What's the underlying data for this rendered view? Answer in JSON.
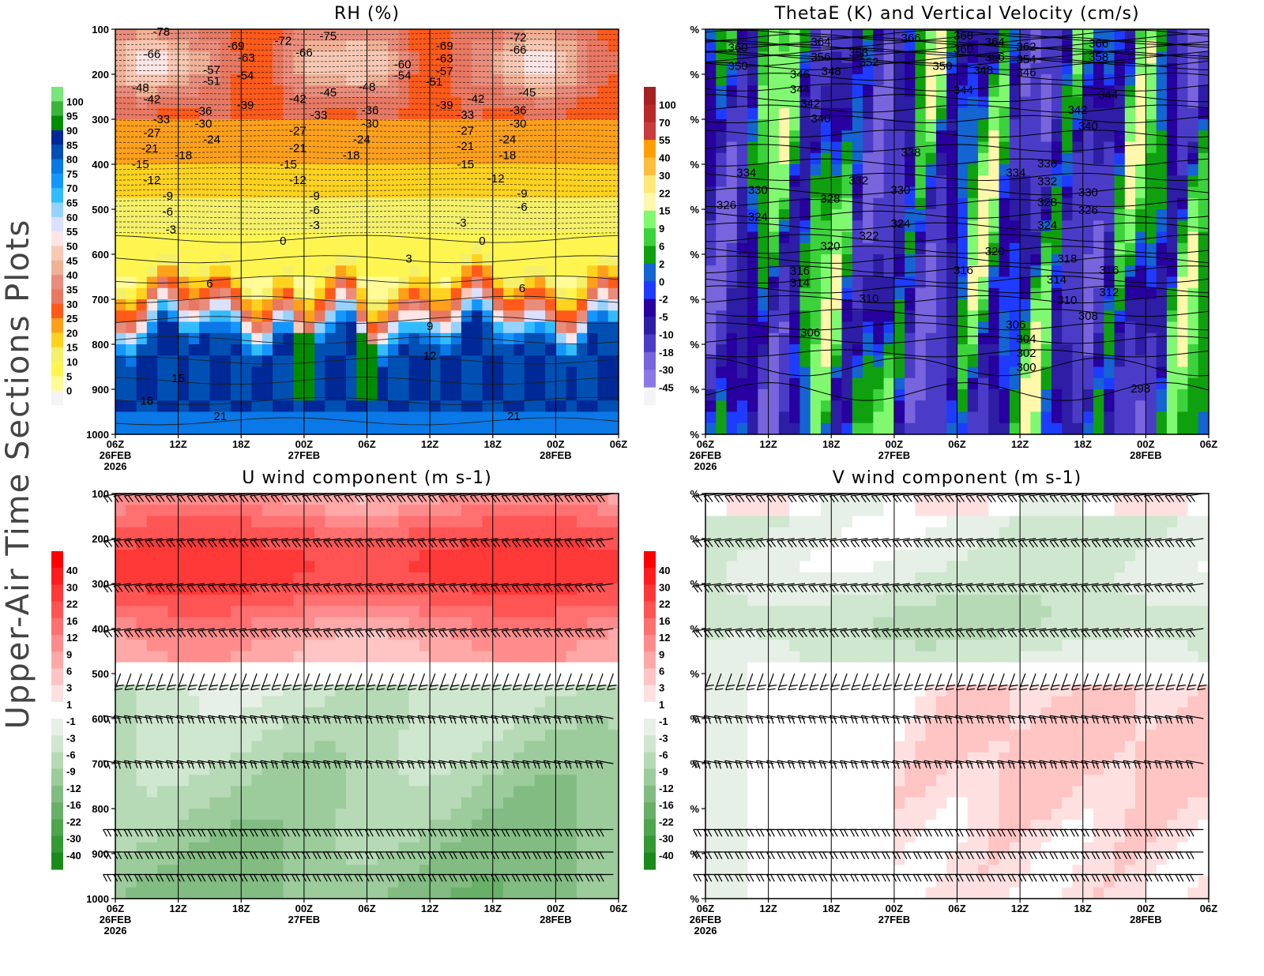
{
  "side_title": "Upper-Air Time Sections Plots",
  "time_axis": {
    "ticks": [
      "06Z",
      "12Z",
      "18Z",
      "00Z",
      "06Z",
      "12Z",
      "18Z",
      "00Z",
      "06Z"
    ],
    "dates": [
      {
        "index": 0,
        "label": "26FEB"
      },
      {
        "index": 3,
        "label": "27FEB"
      },
      {
        "index": 7,
        "label": "28FEB"
      }
    ],
    "year": "2026"
  },
  "pressure_axis": {
    "ticks": [
      "100",
      "200",
      "300",
      "400",
      "500",
      "600",
      "700",
      "800",
      "900",
      "1000"
    ],
    "placeholder_label": "%"
  },
  "chart_data": [
    {
      "type": "heatmap",
      "title": "RH (%)",
      "xlim_hours": [
        0,
        48
      ],
      "ylim_hPa": [
        1000,
        100
      ],
      "colorbar": {
        "levels": [
          0,
          5,
          10,
          15,
          20,
          25,
          30,
          35,
          40,
          45,
          50,
          55,
          60,
          65,
          70,
          75,
          80,
          85,
          90,
          95,
          100
        ],
        "colors": [
          "#f4f4f4",
          "#fffb96",
          "#fff550",
          "#f5f06a",
          "#ffd21e",
          "#ffa01a",
          "#ff5a19",
          "#e87862",
          "#ea8c7c",
          "#f0b296",
          "#f8c8b4",
          "#ffe6e6",
          "#dce0ff",
          "#96d2ff",
          "#32bcff",
          "#1496ff",
          "#0a78e6",
          "#0050b4",
          "#002896",
          "#008c00",
          "#3cb43c",
          "#78e678"
        ]
      },
      "contour_labels": [
        [
          4.4,
          105,
          "-78"
        ],
        [
          3.5,
          155,
          "-66"
        ],
        [
          2.4,
          230,
          "-48"
        ],
        [
          3.5,
          255,
          "-42"
        ],
        [
          4.4,
          300,
          "-33"
        ],
        [
          3.5,
          330,
          "-27"
        ],
        [
          3.3,
          365,
          "-21"
        ],
        [
          2.4,
          400,
          "-15"
        ],
        [
          3.5,
          435,
          "-12"
        ],
        [
          5,
          470,
          "-9"
        ],
        [
          5,
          505,
          "-6"
        ],
        [
          5.3,
          545,
          "-3"
        ],
        [
          16,
          570,
          "0"
        ],
        [
          28,
          610,
          "3"
        ],
        [
          9,
          665,
          "6"
        ],
        [
          30,
          760,
          "9"
        ],
        [
          30,
          825,
          "12"
        ],
        [
          6,
          875,
          "15"
        ],
        [
          3,
          925,
          "18"
        ],
        [
          10,
          960,
          "21"
        ],
        [
          38,
          960,
          "21"
        ],
        [
          11.5,
          137,
          "-69"
        ],
        [
          12.5,
          163,
          "-63"
        ],
        [
          9.2,
          190,
          "-57"
        ],
        [
          12.4,
          203,
          "-54"
        ],
        [
          9.2,
          215,
          "-51"
        ],
        [
          12.4,
          268,
          "-39"
        ],
        [
          8.4,
          282,
          "-36"
        ],
        [
          8.4,
          310,
          "-30"
        ],
        [
          9.2,
          345,
          "-24"
        ],
        [
          6.5,
          380,
          "-18"
        ],
        [
          16,
          125,
          "-72"
        ],
        [
          20.3,
          115,
          "-75"
        ],
        [
          18,
          152,
          "-66"
        ],
        [
          20.3,
          240,
          "-45"
        ],
        [
          17.4,
          254,
          "-42"
        ],
        [
          19.4,
          290,
          "-33"
        ],
        [
          17.4,
          325,
          "-27"
        ],
        [
          17.4,
          364,
          "-21"
        ],
        [
          16.5,
          400,
          "-15"
        ],
        [
          17.4,
          435,
          "-12"
        ],
        [
          19,
          470,
          "-9"
        ],
        [
          19,
          502,
          "-6"
        ],
        [
          19,
          535,
          "-3"
        ],
        [
          24,
          228,
          "-48"
        ],
        [
          24.3,
          280,
          "-36"
        ],
        [
          24.3,
          310,
          "-30"
        ],
        [
          23.5,
          345,
          "-24"
        ],
        [
          22.5,
          380,
          "-18"
        ],
        [
          27.4,
          178,
          "-60"
        ],
        [
          27.4,
          203,
          "-54"
        ],
        [
          30.4,
          217,
          "-51"
        ],
        [
          31.4,
          137,
          "-69"
        ],
        [
          31.4,
          165,
          "-63"
        ],
        [
          31.4,
          193,
          "-57"
        ],
        [
          31.4,
          268,
          "-39"
        ],
        [
          34.4,
          254,
          "-42"
        ],
        [
          33.4,
          290,
          "-33"
        ],
        [
          33.4,
          325,
          "-27"
        ],
        [
          33.4,
          360,
          "-21"
        ],
        [
          33.4,
          400,
          "-15"
        ],
        [
          33,
          530,
          "-3"
        ],
        [
          35,
          570,
          "0"
        ],
        [
          38.4,
          118,
          "-72"
        ],
        [
          38.4,
          146,
          "-66"
        ],
        [
          39.3,
          240,
          "-45"
        ],
        [
          38.4,
          280,
          "-36"
        ],
        [
          38.4,
          310,
          "-30"
        ],
        [
          37.4,
          345,
          "-24"
        ],
        [
          37.4,
          380,
          "-18"
        ],
        [
          36.3,
          432,
          "-12"
        ],
        [
          38.8,
          465,
          "-9"
        ],
        [
          38.8,
          495,
          "-6"
        ],
        [
          38.8,
          675,
          "6"
        ]
      ]
    },
    {
      "type": "heatmap",
      "title": "ThetaE (K) and Vertical Velocity (cm/s)",
      "xlim_hours": [
        0,
        48
      ],
      "ylim_hPa": [
        1000,
        100
      ],
      "colorbar": {
        "levels": [
          -45,
          -30,
          -18,
          -10,
          -5,
          -2,
          0,
          2,
          6,
          9,
          15,
          22,
          30,
          40,
          55,
          70,
          100
        ],
        "colors": [
          "#f4f4f4",
          "#8c78e6",
          "#7864dc",
          "#4b3cc8",
          "#2d1ea5",
          "#2800a0",
          "#1e3cff",
          "#1464d2",
          "#0fa00f",
          "#3cd23c",
          "#80f870",
          "#fff8aa",
          "#ffe678",
          "#ffbe3c",
          "#ffa000",
          "#c83c3c",
          "#b82a2a",
          "#a52022"
        ]
      },
      "contour_labels": [
        [
          3.1,
          140,
          "360"
        ],
        [
          3.1,
          182,
          "350"
        ],
        [
          3.9,
          418,
          "334"
        ],
        [
          5,
          457,
          "330"
        ],
        [
          2,
          490,
          "326"
        ],
        [
          5,
          517,
          "324"
        ],
        [
          9,
          637,
          "316"
        ],
        [
          9,
          663,
          "314"
        ],
        [
          10,
          774,
          "306"
        ],
        [
          11,
          128,
          "364"
        ],
        [
          11,
          161,
          "356"
        ],
        [
          9,
          200,
          "346"
        ],
        [
          9,
          233,
          "344"
        ],
        [
          10,
          265,
          "342"
        ],
        [
          11,
          298,
          "340"
        ],
        [
          12,
          193,
          "348"
        ],
        [
          14.6,
          152,
          "358"
        ],
        [
          15.6,
          173,
          "352"
        ],
        [
          11.9,
          476,
          "328"
        ],
        [
          11.9,
          582,
          "320"
        ],
        [
          15.6,
          559,
          "322"
        ],
        [
          15.6,
          698,
          "310"
        ],
        [
          14.6,
          436,
          "332"
        ],
        [
          18.6,
          457,
          "330"
        ],
        [
          18.6,
          532,
          "324"
        ],
        [
          19.6,
          374,
          "338"
        ],
        [
          19.6,
          119,
          "366"
        ],
        [
          24.6,
          114,
          "368"
        ],
        [
          24.6,
          144,
          "360"
        ],
        [
          22.6,
          182,
          "350"
        ],
        [
          24.6,
          235,
          "344"
        ],
        [
          24.6,
          635,
          "316"
        ],
        [
          27.6,
          128,
          "364"
        ],
        [
          27.6,
          161,
          "356"
        ],
        [
          26.5,
          191,
          "348"
        ],
        [
          30.6,
          139,
          "362"
        ],
        [
          30.6,
          167,
          "354"
        ],
        [
          30.6,
          196,
          "346"
        ],
        [
          27.6,
          593,
          "320"
        ],
        [
          29.6,
          418,
          "334"
        ],
        [
          32.6,
          398,
          "336"
        ],
        [
          32.6,
          438,
          "332"
        ],
        [
          32.6,
          484,
          "328"
        ],
        [
          32.6,
          535,
          "324"
        ],
        [
          34.5,
          610,
          "318"
        ],
        [
          33.5,
          656,
          "314"
        ],
        [
          34.5,
          702,
          "310"
        ],
        [
          36.5,
          737,
          "308"
        ],
        [
          29.6,
          756,
          "306"
        ],
        [
          30.6,
          788,
          "304"
        ],
        [
          30.6,
          819,
          "302"
        ],
        [
          30.6,
          851,
          "300"
        ],
        [
          35.5,
          279,
          "342"
        ],
        [
          36.5,
          315,
          "340"
        ],
        [
          38.4,
          246,
          "344"
        ],
        [
          37.5,
          132,
          "366"
        ],
        [
          37.5,
          161,
          "358"
        ],
        [
          36.5,
          462,
          "330"
        ],
        [
          36.5,
          502,
          "326"
        ],
        [
          38.5,
          635,
          "316"
        ],
        [
          38.5,
          684,
          "312"
        ],
        [
          41.5,
          898,
          "298"
        ]
      ]
    },
    {
      "type": "heatmap",
      "title": "U wind component (m s-1)",
      "xlim_hours": [
        0,
        48
      ],
      "ylim_hPa": [
        1000,
        100
      ],
      "colorbar": {
        "levels": [
          -40,
          -30,
          -22,
          -16,
          -12,
          -9,
          -6,
          -3,
          -1,
          1,
          3,
          6,
          9,
          12,
          16,
          22,
          30,
          40
        ],
        "colors": [
          "#1a8a1a",
          "#349a34",
          "#4ea54e",
          "#68b068",
          "#82bc82",
          "#9ccb9c",
          "#b6d9b6",
          "#cfe6cf",
          "#e6f0e6",
          "#ffffff",
          "#ffe0e0",
          "#ffc4c4",
          "#ffa8a8",
          "#ff8c8c",
          "#ff7070",
          "#ff5454",
          "#ff3838",
          "#ff1c1c",
          "#ff0000"
        ]
      },
      "wind_barb_levels_hPa": [
        100,
        200,
        300,
        400,
        500,
        600,
        700,
        850,
        900,
        950
      ]
    },
    {
      "type": "heatmap",
      "title": "V wind component (m s-1)",
      "xlim_hours": [
        0,
        48
      ],
      "ylim_hPa": [
        1000,
        100
      ],
      "colorbar": {
        "levels": [
          -40,
          -30,
          -22,
          -16,
          -12,
          -9,
          -6,
          -3,
          -1,
          1,
          3,
          6,
          9,
          12,
          16,
          22,
          30,
          40
        ],
        "colors": [
          "#1a8a1a",
          "#349a34",
          "#4ea54e",
          "#68b068",
          "#82bc82",
          "#9ccb9c",
          "#b6d9b6",
          "#cfe6cf",
          "#e6f0e6",
          "#ffffff",
          "#ffe0e0",
          "#ffc4c4",
          "#ffa8a8",
          "#ff8c8c",
          "#ff7070",
          "#ff5454",
          "#ff3838",
          "#ff1c1c",
          "#ff0000"
        ]
      },
      "wind_barb_levels_hPa": [
        100,
        200,
        300,
        400,
        500,
        600,
        700,
        850,
        900,
        950
      ]
    }
  ]
}
